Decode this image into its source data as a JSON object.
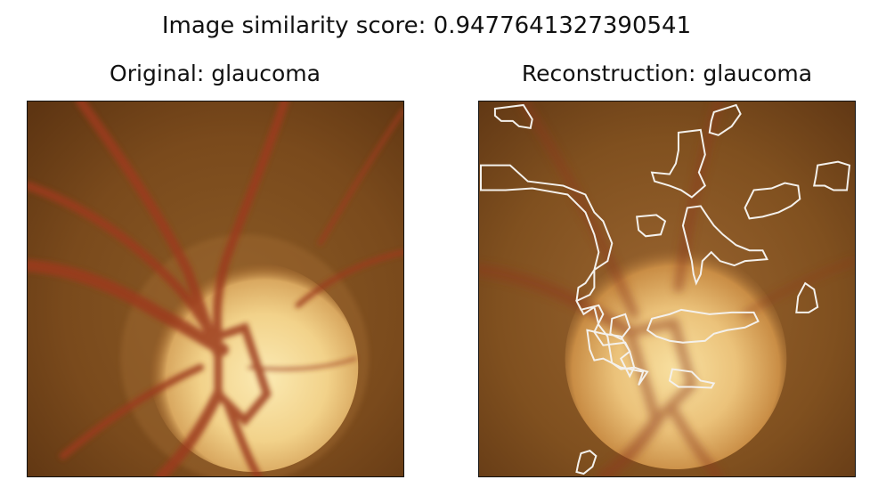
{
  "figure": {
    "suptitle": "Image similarity score: 0.9477641327390541"
  },
  "panels": {
    "original": {
      "title": "Original: glaucoma"
    },
    "reconstruction": {
      "title": "Reconstruction: glaucoma"
    }
  },
  "colors": {
    "fundus_background": "#7a4a1c",
    "fundus_dark": "#5e3512",
    "optic_disc": "#f2d28a",
    "optic_disc_center": "#fbeab3",
    "vessel": "#9c3a1e",
    "contour": "#f4f1ec"
  }
}
